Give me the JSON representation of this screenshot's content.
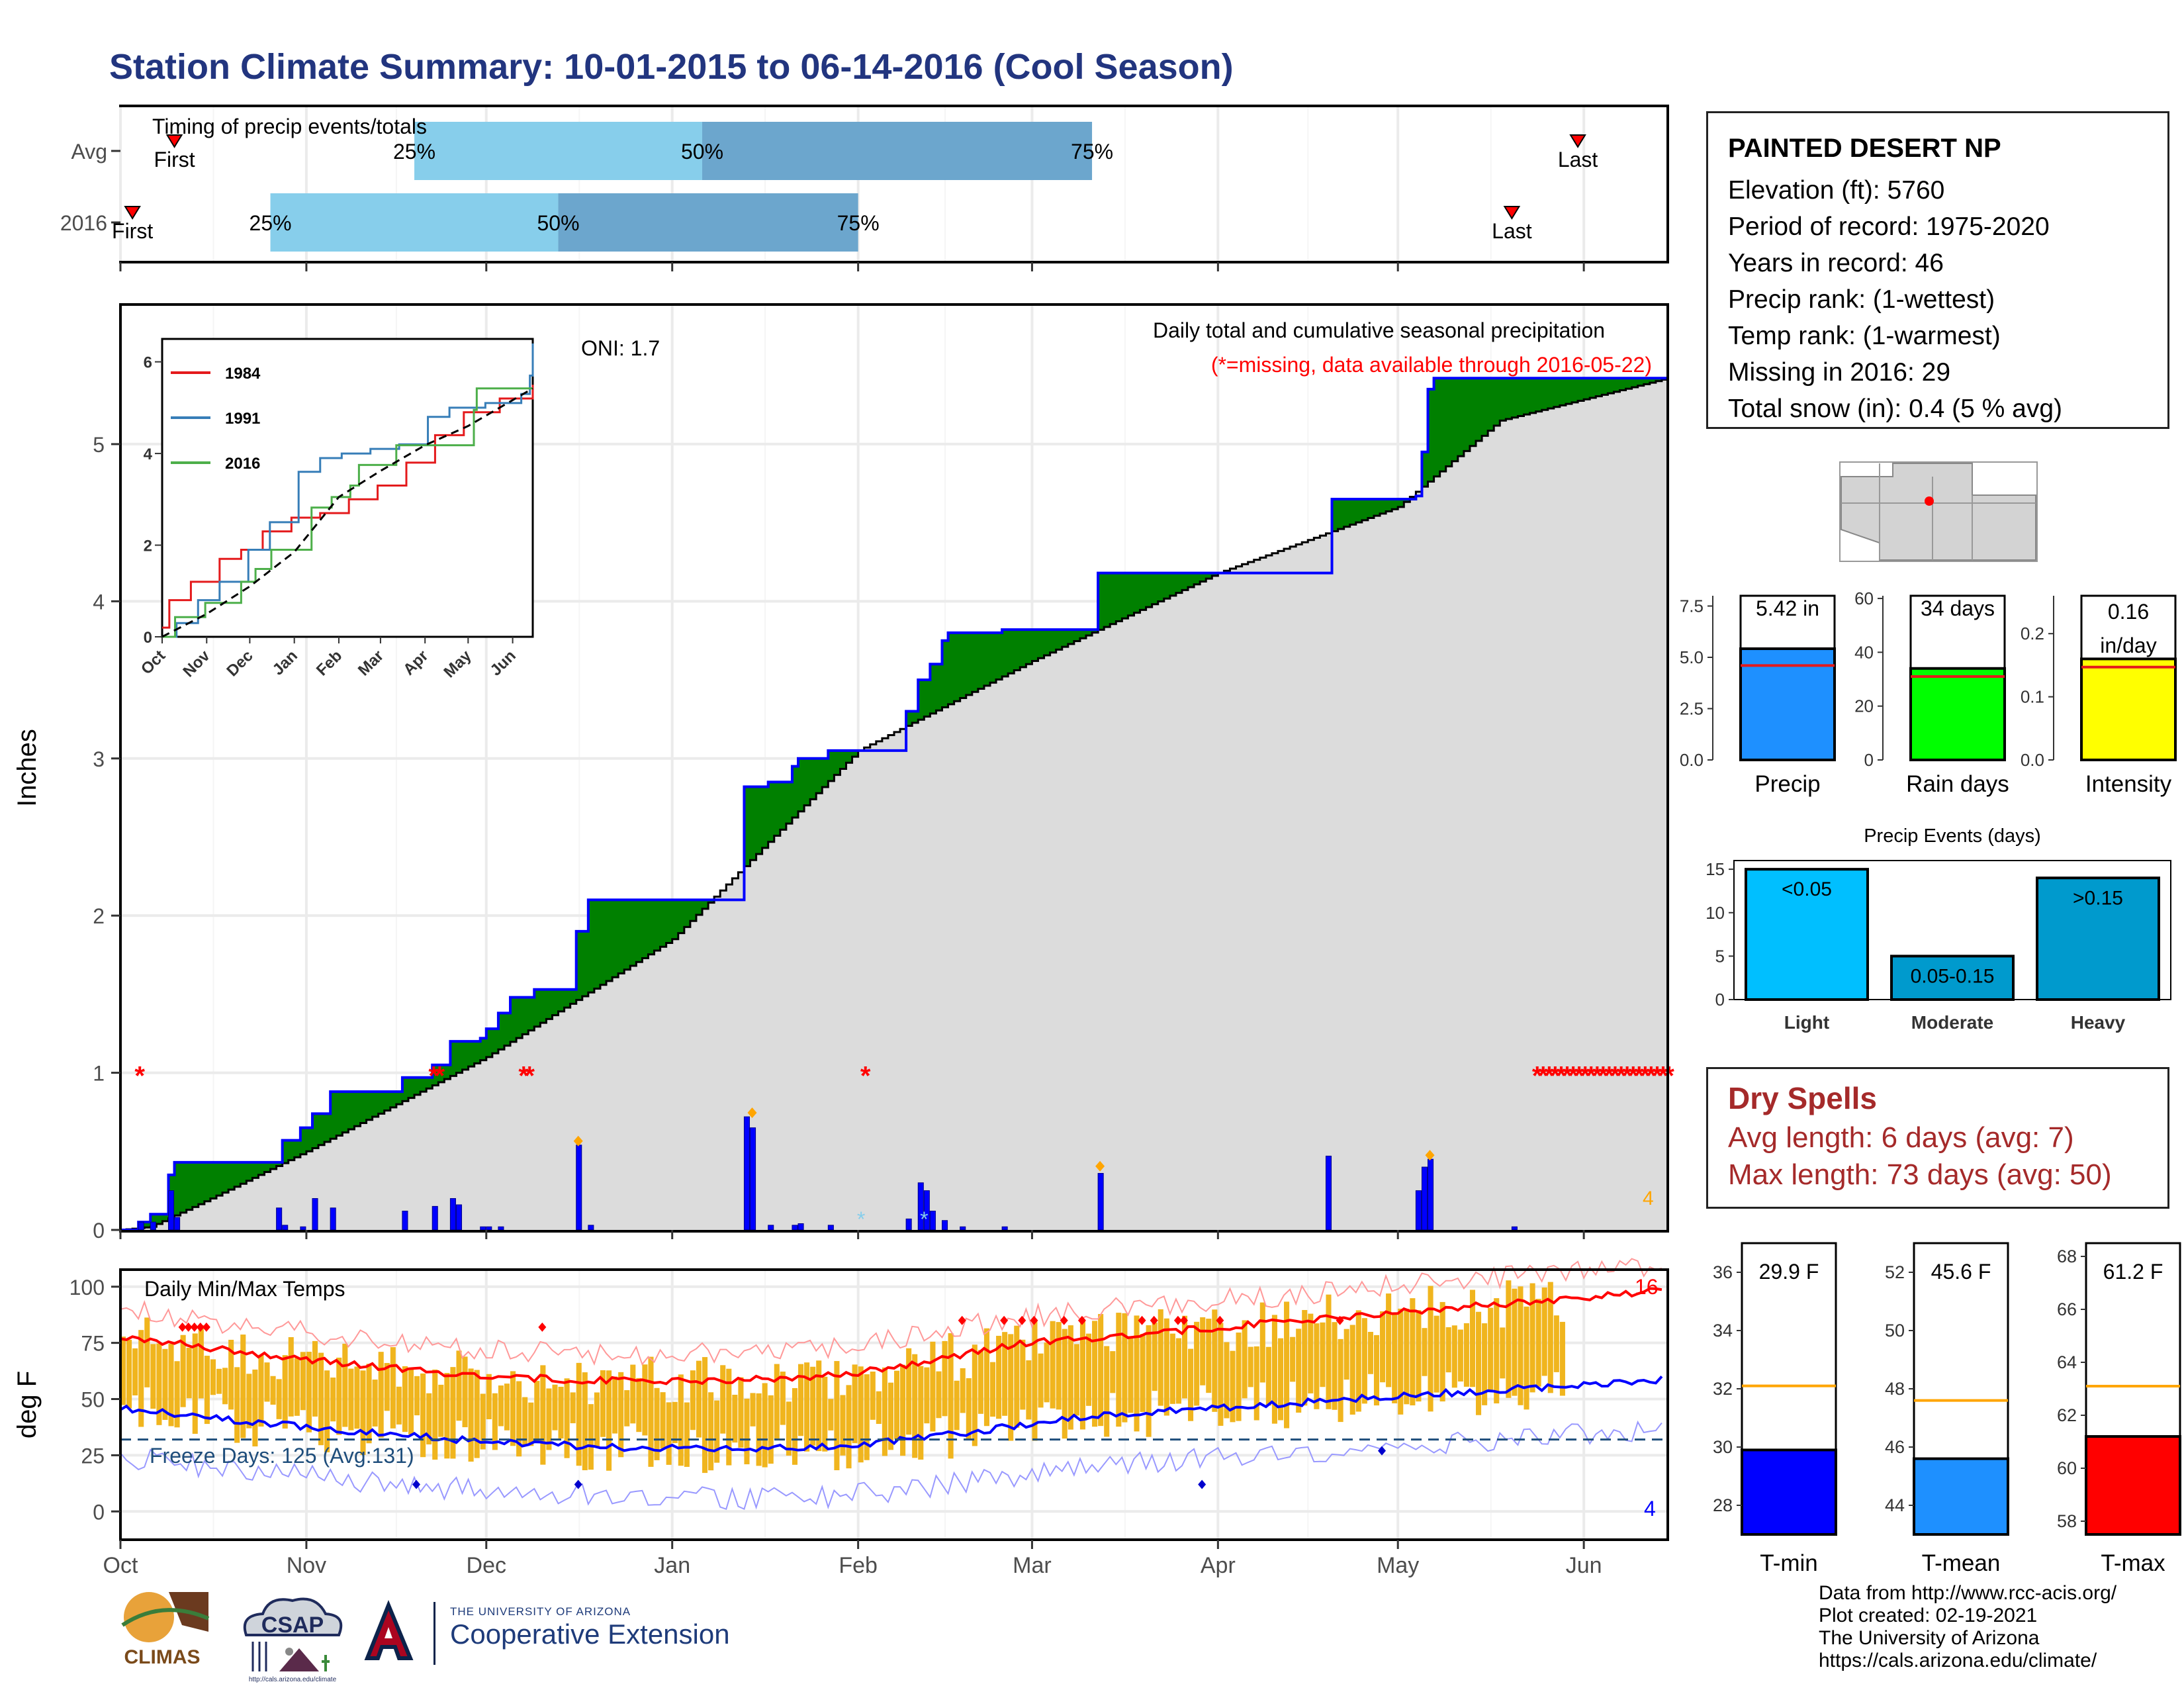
{
  "title": "Station Climate Summary: 10-01-2015 to 06-14-2016 (Cool Season)",
  "timing": {
    "label": "Timing of precip events/totals",
    "rows": [
      {
        "name": "Avg",
        "first_label": "First",
        "last_label": "Last",
        "first": "Oct 10",
        "last": "May 31",
        "p25": "Nov 19",
        "p50": "Jan 6",
        "p75": "Mar 11"
      },
      {
        "name": "2016",
        "first_label": "First",
        "last_label": "Last",
        "first": "Oct 3",
        "last": "May 20",
        "p25": "Oct 26",
        "p50": "Dec 13",
        "p75": "Feb 1"
      }
    ],
    "pct_labels": [
      "25%",
      "50%",
      "75%"
    ],
    "colors": {
      "q1": "#87ceeb",
      "q2": "#6ca6cd",
      "marker": "#ff0000"
    }
  },
  "precip_panel": {
    "ylabel": "Inches",
    "oni": "ONI: 1.7",
    "note1": "Daily total and cumulative seasonal precipitation",
    "note2": "(*=missing, data available through 2016-05-22)",
    "corner_value": "4",
    "yticks": [
      "0",
      "1",
      "2",
      "3",
      "4",
      "5"
    ],
    "colors": {
      "above": "#008000",
      "below": "#8b5a00",
      "normal": "#dcdcdc",
      "line": "#0000ff",
      "bars": "#0000ff",
      "missing": "#ff0000",
      "marker": "#ffa500"
    }
  },
  "inset": {
    "legend": [
      "1984",
      "1991",
      "2016"
    ],
    "legend_colors": [
      "#e41a1c",
      "#377eb8",
      "#4daf4a"
    ],
    "yticks": [
      "0",
      "2",
      "4",
      "6"
    ],
    "xticks": [
      "Oct",
      "Nov",
      "Dec",
      "Jan",
      "Feb",
      "Mar",
      "Apr",
      "May",
      "Jun"
    ]
  },
  "temp_panel": {
    "ylabel": "deg F",
    "label": "Daily Min/Max Temps",
    "freeze": "Freeze Days: 125 (Avg:131)",
    "count_high": "16",
    "count_low": "4",
    "yticks": [
      "0",
      "25",
      "50",
      "75",
      "100"
    ],
    "colors": {
      "bars": "#f0b51e",
      "avg_max": "#ff0000",
      "avg_min": "#0000ff",
      "freeze": "#1e4d7b"
    }
  },
  "months": [
    "Oct",
    "Nov",
    "Dec",
    "Jan",
    "Feb",
    "Mar",
    "Apr",
    "May",
    "Jun"
  ],
  "station": {
    "name": "PAINTED DESERT NP",
    "lines": [
      "Elevation (ft): 5760",
      "Period of record: 1975-2020",
      "Years in record: 46",
      "Precip rank:  (1-wettest)",
      "Temp rank:  (1-warmest)",
      "Missing in 2016: 29",
      "Total snow (in): 0.4 (5 % avg)"
    ]
  },
  "mini_charts": [
    {
      "label": "Precip",
      "value_label": "5.42 in",
      "value": 5.42,
      "avg": 4.6,
      "ymax": 8,
      "yticks": [
        "0.0",
        "2.5",
        "5.0",
        "7.5"
      ],
      "tick_vals": [
        0,
        2.5,
        5,
        7.5
      ],
      "color": "#1e90ff"
    },
    {
      "label": "Rain days",
      "value_label": "34 days",
      "value": 34,
      "avg": 31,
      "ymax": 61,
      "yticks": [
        "0",
        "20",
        "40",
        "60"
      ],
      "tick_vals": [
        0,
        20,
        40,
        60
      ],
      "color": "#00ff00"
    },
    {
      "label": "Intensity",
      "value_label": "0.16 in/day",
      "value": 0.16,
      "avg": 0.147,
      "ymax": 0.26,
      "yticks": [
        "0.0",
        "0.1",
        "0.2"
      ],
      "tick_vals": [
        0,
        0.1,
        0.2
      ],
      "color": "#ffff00"
    }
  ],
  "events_chart": {
    "title": "Precip Events (days)",
    "categories": [
      "Light",
      "Moderate",
      "Heavy"
    ],
    "values": [
      15,
      5,
      14
    ],
    "labels": [
      "<0.05",
      "0.05-0.15",
      ">0.15"
    ],
    "ymax": 16,
    "yticks": [
      "0",
      "5",
      "10",
      "15"
    ],
    "colors": [
      "#00bfff",
      "#009acd",
      "#009acd"
    ]
  },
  "dry_spells": {
    "title": "Dry Spells",
    "avg": "Avg length: 6 days (avg: 7)",
    "max": "Max length: 73 days (avg: 50)"
  },
  "temp_bars": [
    {
      "label": "T-min",
      "value_label": "29.9 F",
      "value": 29.9,
      "avg": 32.1,
      "ymin": 27,
      "ymax": 37,
      "yticks": [
        "28",
        "30",
        "32",
        "34",
        "36"
      ],
      "tick_vals": [
        28,
        30,
        32,
        34,
        36
      ],
      "color": "#0000ff"
    },
    {
      "label": "T-mean",
      "value_label": "45.6 F",
      "value": 45.6,
      "avg": 47.6,
      "ymin": 43,
      "ymax": 53,
      "yticks": [
        "44",
        "46",
        "48",
        "50",
        "52"
      ],
      "tick_vals": [
        44,
        46,
        48,
        50,
        52
      ],
      "color": "#1e90ff"
    },
    {
      "label": "T-max",
      "value_label": "61.2 F",
      "value": 61.2,
      "avg": 63.1,
      "ymin": 57.5,
      "ymax": 68.5,
      "yticks": [
        "58",
        "60",
        "62",
        "64",
        "66",
        "68"
      ],
      "tick_vals": [
        58,
        60,
        62,
        64,
        66,
        68
      ],
      "color": "#ff0000"
    }
  ],
  "credits": [
    "Data from http://www.rcc-acis.org/",
    "Plot created: 02-19-2021",
    "The University of Arizona",
    "https://cals.arizona.edu/climate/"
  ],
  "logos": {
    "climas": "CLIMAS",
    "csap": "CSAP",
    "csap_url": "http://cals.arizona.edu/climate",
    "ua_small": "THE UNIVERSITY OF ARIZONA",
    "ua_big": "Cooperative Extension"
  }
}
